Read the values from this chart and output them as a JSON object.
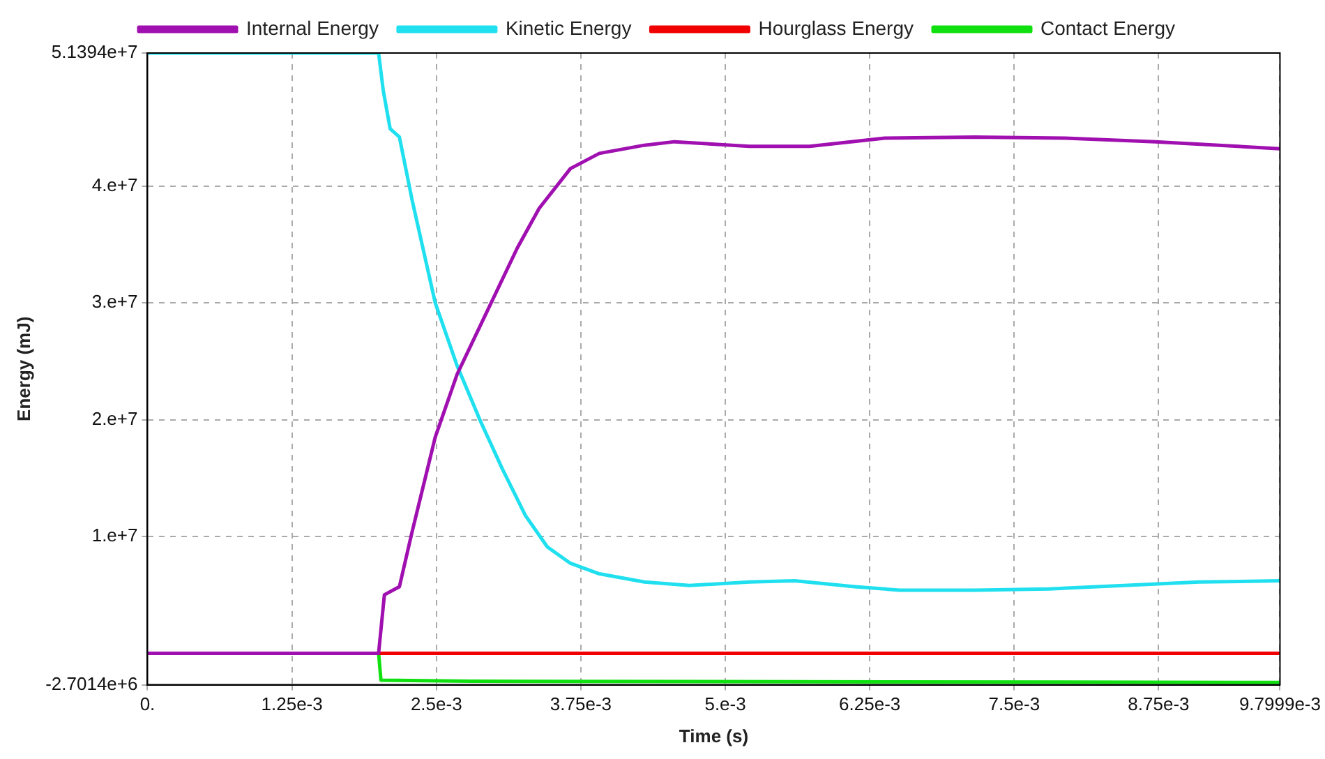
{
  "chart_data": {
    "type": "line",
    "xlabel": "Time (s)",
    "ylabel": "Energy (mJ)",
    "xlim": [
      0,
      0.0097999
    ],
    "ylim": [
      -2701400,
      51394000
    ],
    "xticks": [
      {
        "value": 0,
        "label": "0."
      },
      {
        "value": 0.00125,
        "label": "1.25e-3"
      },
      {
        "value": 0.0025,
        "label": "2.5e-3"
      },
      {
        "value": 0.00375,
        "label": "3.75e-3"
      },
      {
        "value": 0.005,
        "label": "5.e-3"
      },
      {
        "value": 0.00625,
        "label": "6.25e-3"
      },
      {
        "value": 0.0075,
        "label": "7.5e-3"
      },
      {
        "value": 0.00875,
        "label": "8.75e-3"
      },
      {
        "value": 0.0097999,
        "label": "9.7999e-3"
      }
    ],
    "yticks": [
      {
        "value": -2701400,
        "label": "-2.7014e+6"
      },
      {
        "value": 10000000,
        "label": "1.e+7"
      },
      {
        "value": 20000000,
        "label": "2.e+7"
      },
      {
        "value": 30000000,
        "label": "3.e+7"
      },
      {
        "value": 40000000,
        "label": "4.e+7"
      },
      {
        "value": 51394000,
        "label": "5.1394e+7"
      }
    ],
    "grid": true,
    "legend": "top",
    "line_style": "solid",
    "series": [
      {
        "name": "Internal Energy",
        "color": "#a010b0",
        "x": [
          0,
          0.002,
          0.00205,
          0.00218,
          0.00229,
          0.00249,
          0.00268,
          0.00294,
          0.0032,
          0.00339,
          0.00366,
          0.00391,
          0.0043,
          0.00456,
          0.00521,
          0.00573,
          0.00638,
          0.00716,
          0.00794,
          0.00872,
          0.0097999
        ],
        "values": [
          0,
          0,
          5000000,
          5700000,
          10400000,
          18500000,
          23900000,
          29300000,
          34700000,
          38100000,
          41500000,
          42800000,
          43500000,
          43800000,
          43400000,
          43400000,
          44100000,
          44200000,
          44100000,
          43800000,
          43200000
        ]
      },
      {
        "name": "Kinetic Energy",
        "color": "#20e0f0",
        "x": [
          0,
          0.002,
          0.00204,
          0.0021,
          0.00218,
          0.00229,
          0.00249,
          0.00268,
          0.00288,
          0.00307,
          0.00327,
          0.00346,
          0.00366,
          0.00391,
          0.0043,
          0.00469,
          0.00521,
          0.0056,
          0.00612,
          0.00651,
          0.00716,
          0.0078,
          0.00845,
          0.0091,
          0.0097999
        ],
        "values": [
          51394000,
          51394000,
          48200000,
          44900000,
          44200000,
          38800000,
          30000000,
          24600000,
          19900000,
          15800000,
          11800000,
          9100000,
          7700000,
          6800000,
          6100000,
          5800000,
          6100000,
          6200000,
          5700000,
          5400000,
          5400000,
          5500000,
          5800000,
          6100000,
          6200000
        ]
      },
      {
        "name": "Hourglass Energy",
        "color": "#f00000",
        "x": [
          0,
          0.0097999
        ],
        "values": [
          0,
          0
        ]
      },
      {
        "name": "Contact Energy",
        "color": "#10e010",
        "x": [
          0,
          0.002,
          0.00202,
          0.0028,
          0.0097999
        ],
        "values": [
          0,
          0,
          -2300000,
          -2400000,
          -2500000
        ]
      }
    ]
  }
}
